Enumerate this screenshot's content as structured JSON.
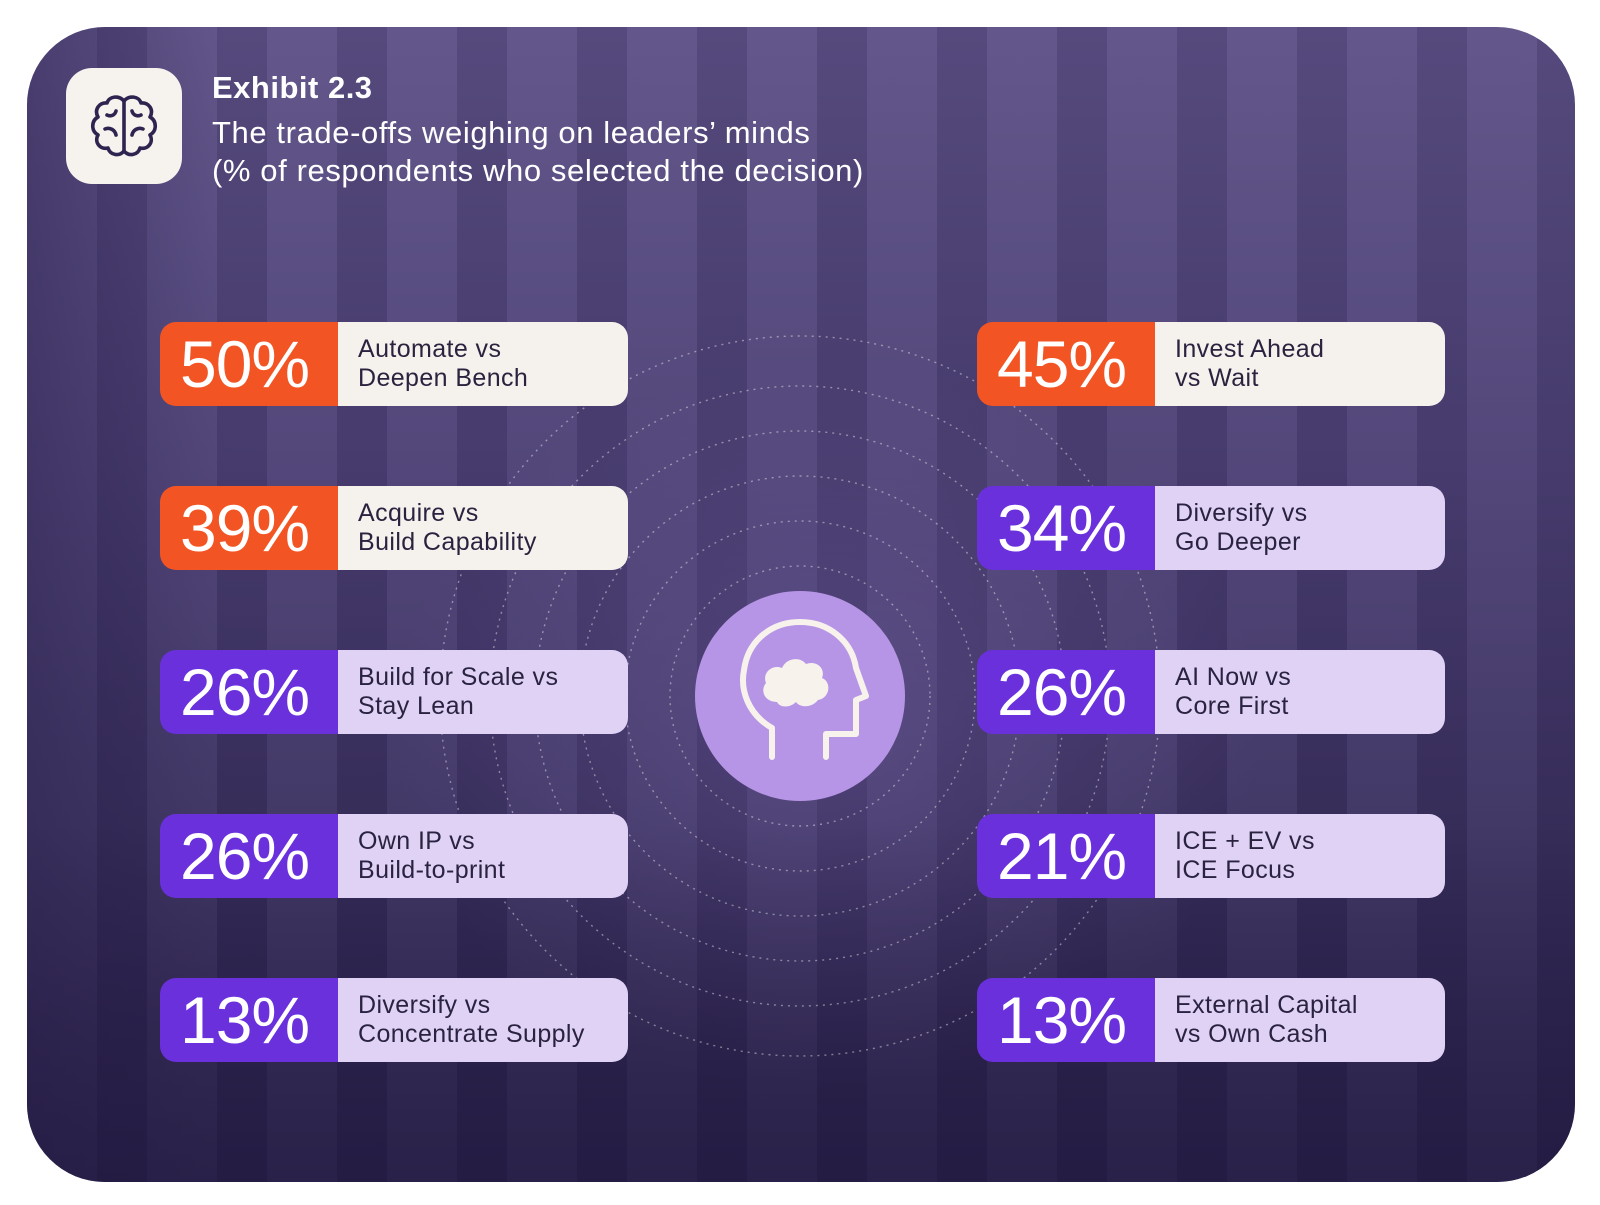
{
  "header": {
    "title": "Exhibit 2.3",
    "subtitle_line1": "The trade-offs weighing on leaders’ minds",
    "subtitle_line2": "(% of respondents who selected the decision)"
  },
  "icons": {
    "logo": "brain-icon",
    "center": "head-with-cloud-icon"
  },
  "colors": {
    "orange_accent": "#f25424",
    "purple_accent": "#6a30dc",
    "light_label_bg": "#f5f1ec",
    "lavender_label_bg": "#e0d2f5",
    "center_circle": "#b694e6"
  },
  "chart_data": {
    "type": "table",
    "title": "Exhibit 2.3",
    "subtitle": "The trade-offs weighing on leaders’ minds (% of respondents who selected the decision)",
    "unit": "%",
    "items": [
      {
        "value": 50,
        "value_label": "50%",
        "line1": "Automate vs",
        "line2": "Deepen Bench",
        "highlight": true,
        "column": "left"
      },
      {
        "value": 39,
        "value_label": "39%",
        "line1": "Acquire vs",
        "line2": "Build Capability",
        "highlight": true,
        "column": "left"
      },
      {
        "value": 26,
        "value_label": "26%",
        "line1": "Build for Scale vs",
        "line2": "Stay Lean",
        "highlight": false,
        "column": "left"
      },
      {
        "value": 26,
        "value_label": "26%",
        "line1": "Own IP vs",
        "line2": "Build-to-print",
        "highlight": false,
        "column": "left"
      },
      {
        "value": 13,
        "value_label": "13%",
        "line1": "Diversify vs",
        "line2": "Concentrate Supply",
        "highlight": false,
        "column": "left"
      },
      {
        "value": 45,
        "value_label": "45%",
        "line1": "Invest Ahead",
        "line2": "vs Wait",
        "highlight": true,
        "column": "right"
      },
      {
        "value": 34,
        "value_label": "34%",
        "line1": "Diversify vs",
        "line2": "Go Deeper",
        "highlight": false,
        "column": "right"
      },
      {
        "value": 26,
        "value_label": "26%",
        "line1": "AI Now vs",
        "line2": "Core First",
        "highlight": false,
        "column": "right"
      },
      {
        "value": 21,
        "value_label": "21%",
        "line1": "ICE + EV vs",
        "line2": "ICE Focus",
        "highlight": false,
        "column": "right"
      },
      {
        "value": 13,
        "value_label": "13%",
        "line1": "External Capital",
        "line2": "vs Own Cash",
        "highlight": false,
        "column": "right"
      }
    ]
  }
}
